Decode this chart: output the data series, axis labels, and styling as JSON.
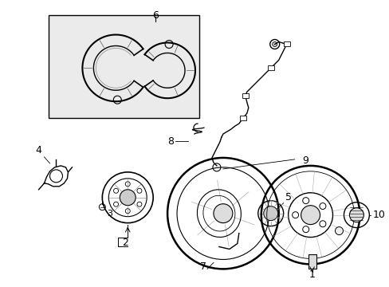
{
  "background_color": "#ffffff",
  "line_color": "#000000",
  "box_bg": "#ebebeb",
  "fig_width": 4.89,
  "fig_height": 3.6,
  "dpi": 100
}
